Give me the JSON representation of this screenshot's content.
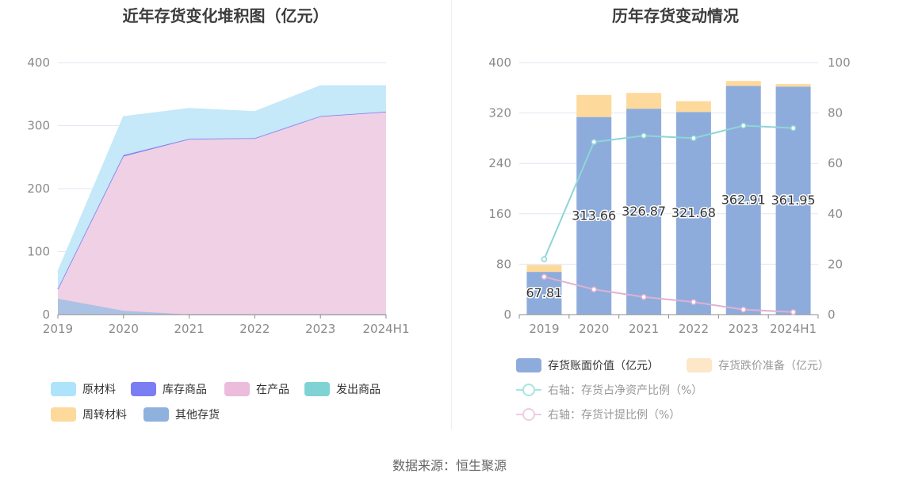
{
  "left_title": "近年存货变化堆积图（亿元）",
  "right_title": "历年存货变动情况",
  "source": "数据来源：恒生聚源",
  "left_legend": [
    {
      "label": "原材料",
      "color": "#aee4fb"
    },
    {
      "label": "库存商品",
      "color": "#7b7ef2"
    },
    {
      "label": "在产品",
      "color": "#ebbcdc"
    },
    {
      "label": "发出商品",
      "color": "#7fd3d5"
    },
    {
      "label": "周转材料",
      "color": "#fdd99b"
    },
    {
      "label": "其他存货",
      "color": "#8eb1dd"
    }
  ],
  "right_legend": [
    {
      "label": "存货账面价值（亿元）",
      "color": "#8eacdb",
      "kind": "bar"
    },
    {
      "label": "存货跌价准备（亿元）",
      "color": "#fde7c7",
      "kind": "bar",
      "muted": true
    },
    {
      "label": "右轴：存货占净资产比例（%）",
      "color": "#a8e3e4",
      "kind": "line",
      "muted": true
    },
    {
      "label": "右轴：存货计提比例（%）",
      "color": "#f0cde2",
      "kind": "line",
      "muted": true
    }
  ],
  "chart_data": [
    {
      "type": "area",
      "title": "近年存货变化堆积图（亿元）",
      "categories": [
        "2019",
        "2020",
        "2021",
        "2022",
        "2023",
        "2024H1"
      ],
      "ylim": [
        0,
        400
      ],
      "yticks": [
        0,
        100,
        200,
        300,
        400
      ],
      "stacked": true,
      "series": [
        {
          "name": "其他存货",
          "color": "#a8bfe3",
          "values": [
            25,
            6,
            0,
            0,
            0,
            0
          ]
        },
        {
          "name": "周转材料",
          "color": "#fdd99b",
          "values": [
            0,
            0,
            0,
            0,
            0,
            0
          ]
        },
        {
          "name": "发出商品",
          "color": "#7fd3d5",
          "values": [
            0,
            0,
            0,
            0,
            0,
            0
          ]
        },
        {
          "name": "在产品",
          "color": "#efcde3",
          "values": [
            15,
            245,
            278,
            280,
            315,
            322
          ]
        },
        {
          "name": "库存商品",
          "color": "#7b7ef2",
          "values": [
            1,
            2,
            1,
            0,
            0,
            0
          ]
        },
        {
          "name": "原材料",
          "color": "#c3e8fa",
          "values": [
            27,
            61,
            48,
            42,
            48,
            41
          ]
        }
      ],
      "legend": "bottom"
    },
    {
      "type": "bar",
      "title": "历年存货变动情况",
      "categories": [
        "2019",
        "2020",
        "2021",
        "2022",
        "2023",
        "2024H1"
      ],
      "ylim": [
        0,
        400
      ],
      "yticks": [
        0,
        80,
        160,
        240,
        320,
        400
      ],
      "y2lim": [
        0,
        100
      ],
      "y2ticks": [
        0,
        20,
        40,
        60,
        80,
        100
      ],
      "series": [
        {
          "name": "存货账面价值（亿元）",
          "color": "#8eacdb",
          "values": [
            67.81,
            313.66,
            326.87,
            321.68,
            362.91,
            361.95
          ],
          "labels": [
            "67.81",
            "313.66",
            "326.87",
            "321.68",
            "362.91",
            "361.95"
          ]
        },
        {
          "name": "存货跌价准备（亿元）",
          "color": "#fdd99b",
          "values": [
            11,
            35,
            25,
            17,
            8,
            4
          ]
        },
        {
          "name": "右轴：存货占净资产比例（%）",
          "type": "line",
          "axis": "right",
          "color": "#8dd6d7",
          "values": [
            22,
            68.5,
            71,
            70,
            75,
            74
          ]
        },
        {
          "name": "右轴：存货计提比例（%）",
          "type": "line",
          "axis": "right",
          "color": "#e0b1d3",
          "values": [
            15,
            10,
            7,
            5,
            2,
            1
          ]
        }
      ],
      "legend": "bottom"
    }
  ]
}
